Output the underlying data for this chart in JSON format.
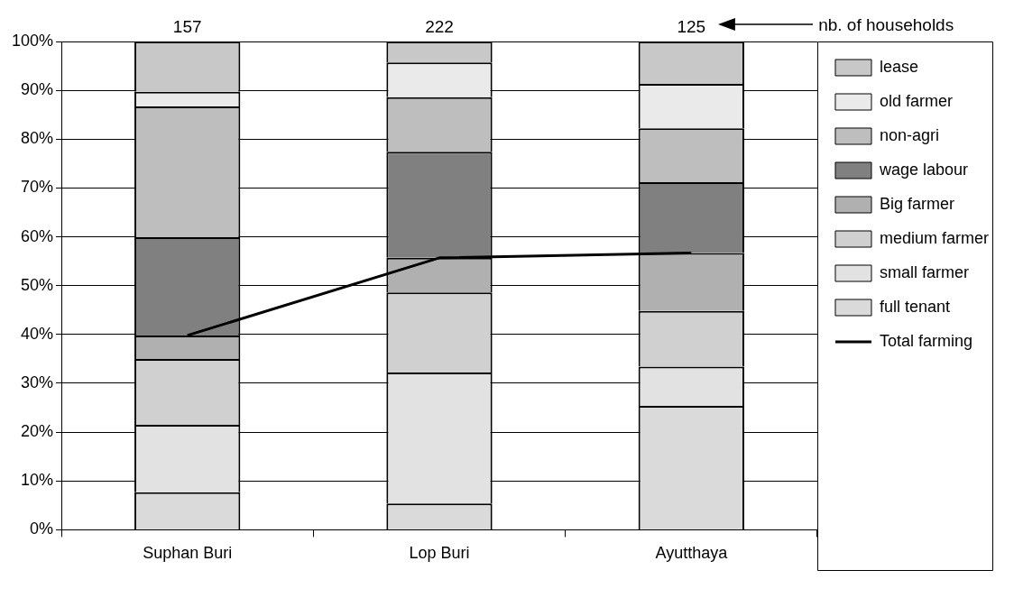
{
  "chart_data": {
    "type": "bar",
    "stacked": true,
    "categories": [
      "Suphan Buri",
      "Lop Buri",
      "Ayutthaya"
    ],
    "series": [
      {
        "name": "full tenant",
        "color": "#dadada",
        "values": [
          7.7,
          5.4,
          25.4
        ]
      },
      {
        "name": "small farmer",
        "color": "#e2e2e2",
        "values": [
          13.8,
          26.8,
          8.0
        ]
      },
      {
        "name": "medium farmer",
        "color": "#d0d0d0",
        "values": [
          13.5,
          16.4,
          11.4
        ]
      },
      {
        "name": "Big farmer",
        "color": "#b0b0b0",
        "values": [
          4.8,
          7.1,
          11.9
        ]
      },
      {
        "name": "wage labour",
        "color": "#808080",
        "values": [
          20.1,
          21.7,
          14.5
        ]
      },
      {
        "name": "non-agri",
        "color": "#bebebe",
        "values": [
          26.8,
          11.2,
          11.0
        ]
      },
      {
        "name": "old farmer",
        "color": "#eaeaea",
        "values": [
          3.0,
          7.1,
          9.1
        ]
      },
      {
        "name": "lease",
        "color": "#c8c8c8",
        "values": [
          10.3,
          4.3,
          8.7
        ]
      },
      {
        "name": "Total farming",
        "type": "line",
        "color": "#000000",
        "values": [
          39.8,
          55.7,
          56.7
        ]
      }
    ],
    "ylim": [
      0,
      100
    ],
    "yticks": [
      {
        "value": 0,
        "label": "0%"
      },
      {
        "value": 10,
        "label": "10%"
      },
      {
        "value": 20,
        "label": "20%"
      },
      {
        "value": 30,
        "label": "30%"
      },
      {
        "value": 40,
        "label": "40%"
      },
      {
        "value": 50,
        "label": "50%"
      },
      {
        "value": 60,
        "label": "60%"
      },
      {
        "value": 70,
        "label": "70%"
      },
      {
        "value": 80,
        "label": "80%"
      },
      {
        "value": 90,
        "label": "90%"
      },
      {
        "value": 100,
        "label": "100%"
      }
    ],
    "grid": "y",
    "legend": "right",
    "annotations": [
      "157",
      "222",
      "125",
      "nb. of households"
    ]
  }
}
